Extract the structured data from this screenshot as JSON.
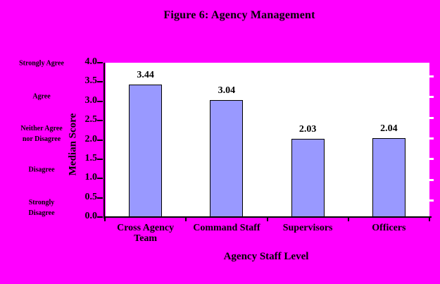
{
  "title": "Figure 6: Agency Management",
  "colors": {
    "background": "#FF00FF",
    "plot_background": "#FFFFFF",
    "bar_fill": "#9999FF",
    "bar_border": "#000000",
    "axis": "#000000",
    "text": "#000000"
  },
  "likert_scale": [
    {
      "lines": [
        "Strongly Agree"
      ],
      "value": 4
    },
    {
      "lines": [
        "Agree"
      ],
      "value": 3
    },
    {
      "lines": [
        "Neither Agree",
        "nor Disagree"
      ],
      "value": 2
    },
    {
      "lines": [
        "Disagree"
      ],
      "value": 1
    },
    {
      "lines": [
        "Strongly",
        "Disagree"
      ],
      "value": 0
    }
  ],
  "chart_data": {
    "type": "bar",
    "title": "Figure 6: Agency Management",
    "categories": [
      "Cross Agency Team",
      "Command Staff",
      "Supervisors",
      "Officers"
    ],
    "values": [
      3.44,
      3.04,
      2.03,
      2.04
    ],
    "data_labels": [
      "3.44",
      "3.04",
      "2.03",
      "2.04"
    ],
    "xlabel": "Agency Staff Level",
    "ylabel": "Median Score",
    "ylim": [
      0,
      4
    ],
    "yticks": [
      4.0,
      3.5,
      3.0,
      2.5,
      2.0,
      1.5,
      1.0,
      0.5,
      0.0
    ],
    "ytick_labels": [
      "4.0",
      "3.5",
      "3.0",
      "2.5",
      "2.0",
      "1.5",
      "1.0",
      "0.5",
      "0.0"
    ],
    "grid": false,
    "legend": false,
    "plot_background": "#FFFFFF",
    "bar_color": "#9999FF"
  }
}
